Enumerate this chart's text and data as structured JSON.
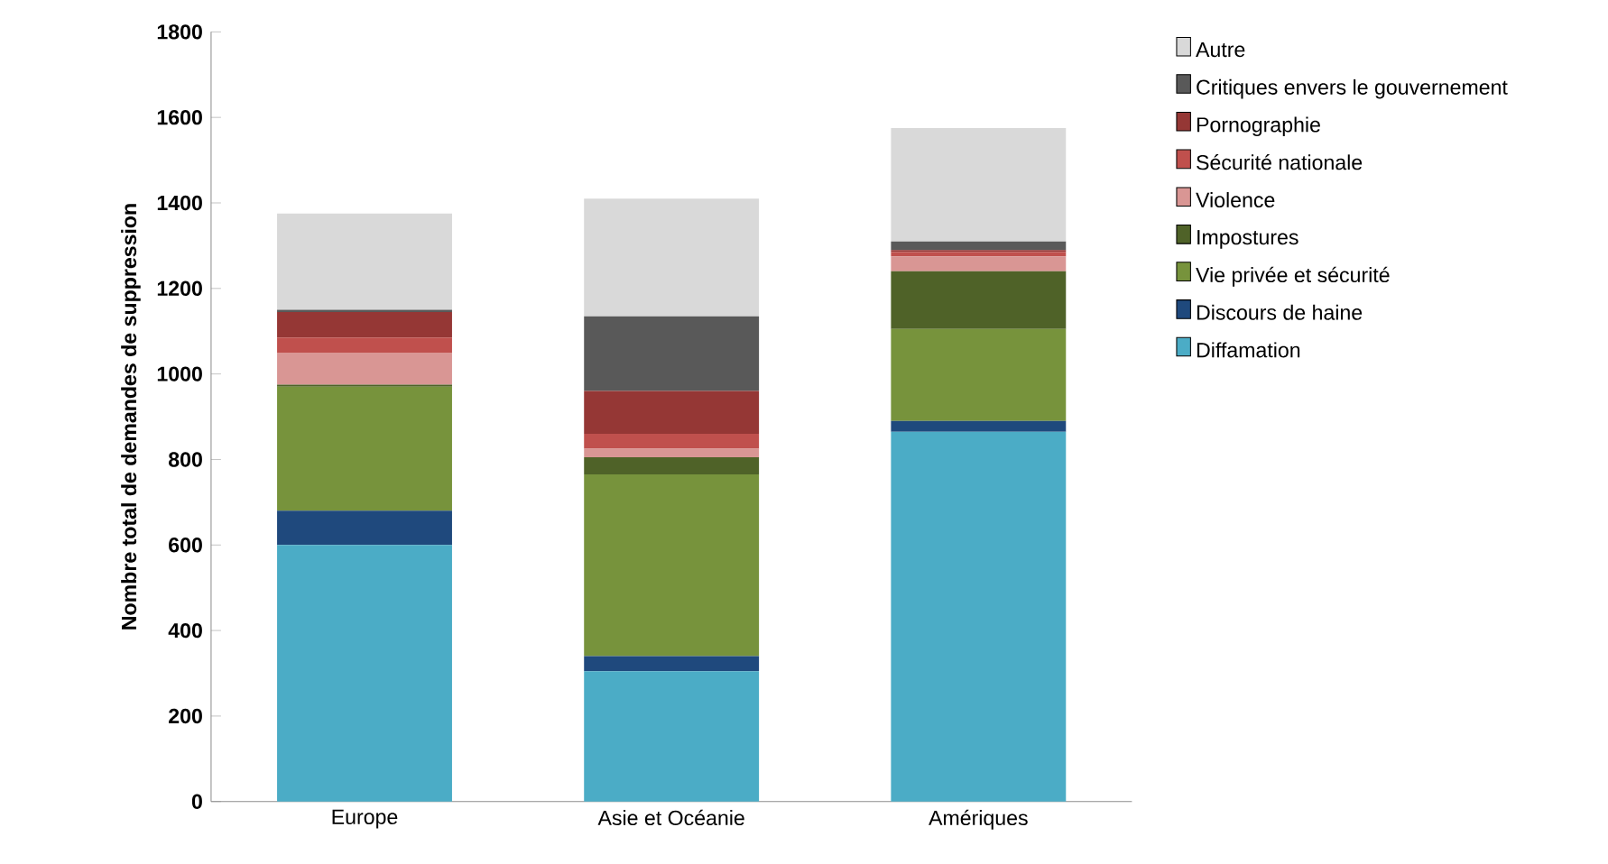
{
  "chart_data": {
    "type": "bar",
    "stacked": true,
    "ylabel": "Nombre total de demandes de suppression",
    "categories": [
      "Europe",
      "Asie et Océanie",
      "Amériques"
    ],
    "series": [
      {
        "name": "Diffamation",
        "color": "#4bacc6",
        "values": [
          600,
          305,
          865
        ]
      },
      {
        "name": "Discours de haine",
        "color": "#1f497d",
        "values": [
          80,
          35,
          25
        ]
      },
      {
        "name": "Vie privée et sécurité",
        "color": "#77933c",
        "values": [
          290,
          425,
          215
        ]
      },
      {
        "name": "Impostures",
        "color": "#4f6228",
        "values": [
          5,
          40,
          135
        ]
      },
      {
        "name": "Violence",
        "color": "#d99694",
        "values": [
          75,
          20,
          35
        ]
      },
      {
        "name": "Sécurité nationale",
        "color": "#c0504d",
        "values": [
          35,
          35,
          10
        ]
      },
      {
        "name": "Pornographie",
        "color": "#953735",
        "values": [
          60,
          100,
          5
        ]
      },
      {
        "name": "Critiques envers le gouvernement",
        "color": "#595959",
        "values": [
          5,
          175,
          20
        ]
      },
      {
        "name": "Autre",
        "color": "#d9d9d9",
        "values": [
          225,
          275,
          265
        ]
      }
    ],
    "ylim": [
      0,
      1800
    ],
    "yticks": [
      0,
      200,
      400,
      600,
      800,
      1000,
      1200,
      1400,
      1600,
      1800
    ],
    "grid": false,
    "legend": "right"
  }
}
